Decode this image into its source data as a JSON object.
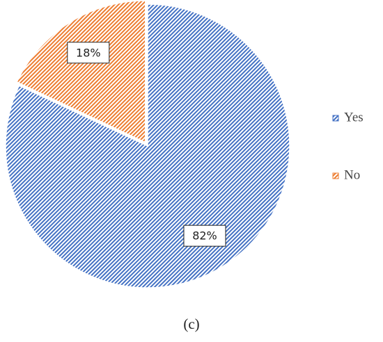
{
  "chart_data": {
    "type": "pie",
    "title": "(c)",
    "categories": [
      "Yes",
      "No"
    ],
    "values": [
      82,
      18
    ],
    "value_labels": [
      "82%",
      "18%"
    ],
    "colors": [
      "#4472c4",
      "#ed7d31"
    ],
    "legend": "right"
  }
}
